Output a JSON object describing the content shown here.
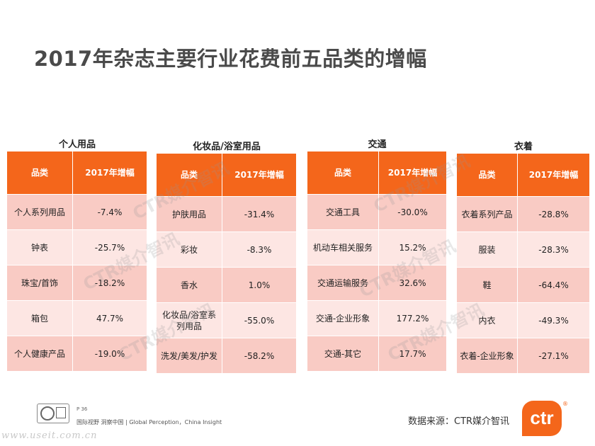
{
  "title": "2017年杂志主要行业花费前五品类的增幅",
  "header": {
    "col_category": "品类",
    "col_growth": "2017年增幅"
  },
  "groups": [
    {
      "name": "个人用品",
      "rows": [
        {
          "category": "个人系列用品",
          "growth": "-7.4%"
        },
        {
          "category": "钟表",
          "growth": "-25.7%"
        },
        {
          "category": "珠宝/首饰",
          "growth": "-18.2%"
        },
        {
          "category": "箱包",
          "growth": "47.7%"
        },
        {
          "category": "个人健康产品",
          "growth": "-19.0%"
        }
      ]
    },
    {
      "name": "化妆品/浴室用品",
      "rows": [
        {
          "category": "护肤用品",
          "growth": "-31.4%"
        },
        {
          "category": "彩妆",
          "growth": "-8.3%"
        },
        {
          "category": "香水",
          "growth": "1.0%"
        },
        {
          "category": "化妆品/浴室系列用品",
          "growth": "-55.0%"
        },
        {
          "category": "洗发/美发/护发",
          "growth": "-58.2%"
        }
      ]
    },
    {
      "name": "交通",
      "rows": [
        {
          "category": "交通工具",
          "growth": "-30.0%"
        },
        {
          "category": "机动车相关服务",
          "growth": "15.2%"
        },
        {
          "category": "交通运输服务",
          "growth": "32.6%"
        },
        {
          "category": "交通-企业形象",
          "growth": "177.2%"
        },
        {
          "category": "交通-其它",
          "growth": "17.7%"
        }
      ]
    },
    {
      "name": "衣着",
      "rows": [
        {
          "category": "衣着系列产品",
          "growth": "-28.8%"
        },
        {
          "category": "服装",
          "growth": "-28.3%"
        },
        {
          "category": "鞋",
          "growth": "-64.4%"
        },
        {
          "category": "内衣",
          "growth": "-49.3%"
        },
        {
          "category": "衣着-企业形象",
          "growth": "-27.1%"
        }
      ]
    }
  ],
  "watermark": "CTR媒介智讯",
  "footer": {
    "page": "P 36",
    "tagline": "国际视野  洞察中国 |  Global Perception，China Insight",
    "site": "www.useit.com.cn",
    "source": "数据来源：CTR媒介智讯",
    "logo": "ctr",
    "logo_reg": "®"
  },
  "colors": {
    "header": "#f4661b",
    "row_odd": "#f9cbc4",
    "row_even": "#fde6e3",
    "title": "#4a4a4a"
  }
}
